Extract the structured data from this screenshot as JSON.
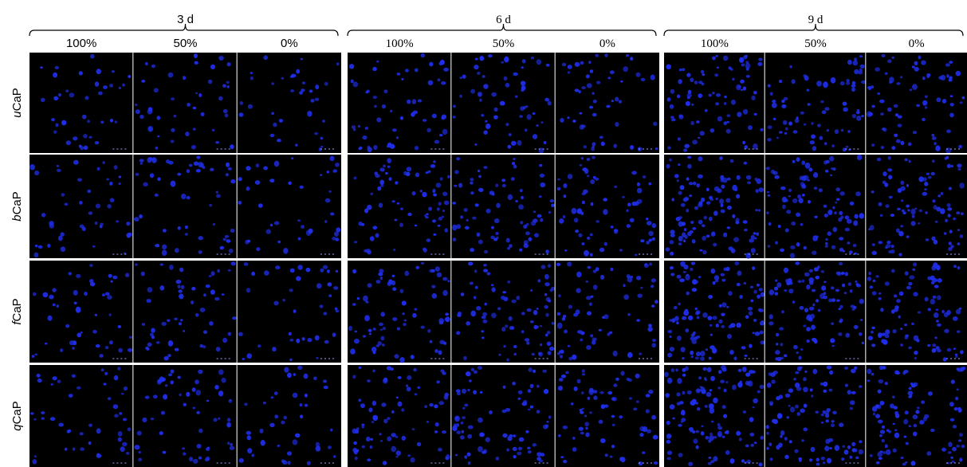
{
  "groups": [
    {
      "label": "3 d",
      "font": "sans",
      "conditions": [
        "100%",
        "50%",
        "0%"
      ]
    },
    {
      "label": "6 d",
      "font": "serif",
      "conditions": [
        "100%",
        "50%",
        "0%"
      ]
    },
    {
      "label": "9 d",
      "font": "serif",
      "conditions": [
        "100%",
        "50%",
        "0%"
      ]
    }
  ],
  "rows": [
    {
      "prefix": "u",
      "suffix": "CaP"
    },
    {
      "prefix": "b",
      "suffix": "CaP"
    },
    {
      "prefix": "f",
      "suffix": "CaP"
    },
    {
      "prefix": "q",
      "suffix": "CaP"
    }
  ],
  "colors": {
    "panel_background": "#000000",
    "nuclei": "#1f2eea",
    "divider": "#ffffff",
    "text": "#000000"
  }
}
